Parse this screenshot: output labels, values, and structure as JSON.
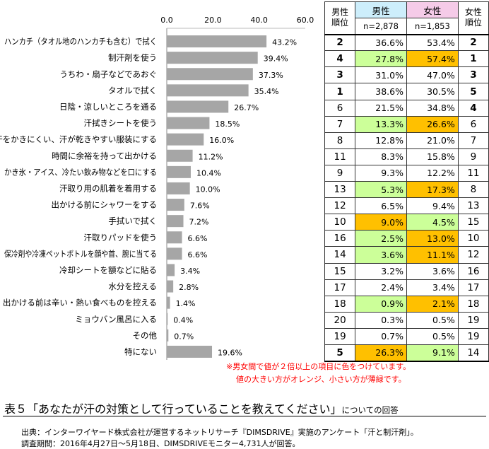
{
  "chart_data": {
    "type": "bar",
    "orientation": "horizontal",
    "categories": [
      "ハンカチ（タオル地のハンカチも含む）で拭く",
      "制汗剤を使う",
      "うちわ・扇子などであおぐ",
      "タオルで拭く",
      "日陰・涼しいところを通る",
      "汗拭きシートを使う",
      "汗をかきにくい、汗が乾きやすい服装にする",
      "時間に余裕を持って出かける",
      "かき氷・アイス、冷たい飲み物などを口にする",
      "汗取り用の肌着を着用する",
      "出かける前にシャワーをする",
      "手拭いで拭く",
      "汗取りパッドを使う",
      "保冷剤や冷凍ペットボトルを顔や首、腕に当てる",
      "冷却シートを額などに貼る",
      "水分を控える",
      "出かける前は辛い・熱い食べものを控える",
      "ミョウバン風呂に入る",
      "その他",
      "特にない"
    ],
    "values": [
      43.2,
      39.4,
      37.3,
      35.4,
      26.7,
      18.5,
      16.0,
      11.2,
      10.4,
      10.0,
      7.6,
      7.2,
      6.6,
      6.6,
      3.4,
      2.8,
      1.4,
      0.4,
      0.7,
      19.6
    ],
    "value_labels": [
      "43.2%",
      "39.4%",
      "37.3%",
      "35.4%",
      "26.7%",
      "18.5%",
      "16.0%",
      "11.2%",
      "10.4%",
      "10.0%",
      "7.6%",
      "7.2%",
      "6.6%",
      "6.6%",
      "3.4%",
      "2.8%",
      "1.4%",
      "0.4%",
      "0.7%",
      "19.6%"
    ],
    "xlim": [
      0,
      60
    ],
    "xticks": [
      "0.0",
      "20.0",
      "40.0",
      "60.0"
    ],
    "bar_color": "#a6a6a6"
  },
  "table": {
    "headers": {
      "male_rank": "男性\n順位",
      "male": "男性",
      "female": "女性",
      "female_rank": "女性\n順位",
      "male_n": "n=2,878",
      "female_n": "n=1,853"
    },
    "rows": [
      {
        "male_rank": "2",
        "male_rank_bold": true,
        "male": "36.6%",
        "female": "53.4%",
        "female_rank": "2",
        "female_rank_bold": true,
        "male_hl": "",
        "female_hl": ""
      },
      {
        "male_rank": "4",
        "male_rank_bold": true,
        "male": "27.8%",
        "female": "57.4%",
        "female_rank": "1",
        "female_rank_bold": true,
        "male_hl": "green",
        "female_hl": "orange"
      },
      {
        "male_rank": "3",
        "male_rank_bold": true,
        "male": "31.0%",
        "female": "47.0%",
        "female_rank": "3",
        "female_rank_bold": true,
        "male_hl": "",
        "female_hl": ""
      },
      {
        "male_rank": "1",
        "male_rank_bold": true,
        "male": "38.6%",
        "female": "30.5%",
        "female_rank": "5",
        "female_rank_bold": true,
        "male_hl": "",
        "female_hl": ""
      },
      {
        "male_rank": "6",
        "male_rank_bold": false,
        "male": "21.5%",
        "female": "34.8%",
        "female_rank": "4",
        "female_rank_bold": true,
        "male_hl": "",
        "female_hl": ""
      },
      {
        "male_rank": "7",
        "male_rank_bold": false,
        "male": "13.3%",
        "female": "26.6%",
        "female_rank": "6",
        "female_rank_bold": false,
        "male_hl": "green",
        "female_hl": "orange"
      },
      {
        "male_rank": "8",
        "male_rank_bold": false,
        "male": "12.8%",
        "female": "21.0%",
        "female_rank": "7",
        "female_rank_bold": false,
        "male_hl": "",
        "female_hl": ""
      },
      {
        "male_rank": "11",
        "male_rank_bold": false,
        "male": "8.3%",
        "female": "15.8%",
        "female_rank": "9",
        "female_rank_bold": false,
        "male_hl": "",
        "female_hl": ""
      },
      {
        "male_rank": "9",
        "male_rank_bold": false,
        "male": "9.3%",
        "female": "12.2%",
        "female_rank": "11",
        "female_rank_bold": false,
        "male_hl": "",
        "female_hl": ""
      },
      {
        "male_rank": "13",
        "male_rank_bold": false,
        "male": "5.3%",
        "female": "17.3%",
        "female_rank": "8",
        "female_rank_bold": false,
        "male_hl": "green",
        "female_hl": "orange"
      },
      {
        "male_rank": "12",
        "male_rank_bold": false,
        "male": "6.5%",
        "female": "9.4%",
        "female_rank": "13",
        "female_rank_bold": false,
        "male_hl": "",
        "female_hl": ""
      },
      {
        "male_rank": "10",
        "male_rank_bold": false,
        "male": "9.0%",
        "female": "4.5%",
        "female_rank": "15",
        "female_rank_bold": false,
        "male_hl": "orange",
        "female_hl": "green"
      },
      {
        "male_rank": "16",
        "male_rank_bold": false,
        "male": "2.5%",
        "female": "13.0%",
        "female_rank": "10",
        "female_rank_bold": false,
        "male_hl": "green",
        "female_hl": "orange"
      },
      {
        "male_rank": "14",
        "male_rank_bold": false,
        "male": "3.6%",
        "female": "11.1%",
        "female_rank": "12",
        "female_rank_bold": false,
        "male_hl": "green",
        "female_hl": "orange"
      },
      {
        "male_rank": "15",
        "male_rank_bold": false,
        "male": "3.2%",
        "female": "3.6%",
        "female_rank": "16",
        "female_rank_bold": false,
        "male_hl": "",
        "female_hl": ""
      },
      {
        "male_rank": "17",
        "male_rank_bold": false,
        "male": "2.4%",
        "female": "3.4%",
        "female_rank": "17",
        "female_rank_bold": false,
        "male_hl": "",
        "female_hl": ""
      },
      {
        "male_rank": "18",
        "male_rank_bold": false,
        "male": "0.9%",
        "female": "2.1%",
        "female_rank": "18",
        "female_rank_bold": false,
        "male_hl": "green",
        "female_hl": "orange"
      },
      {
        "male_rank": "20",
        "male_rank_bold": false,
        "male": "0.3%",
        "female": "0.5%",
        "female_rank": "19",
        "female_rank_bold": false,
        "male_hl": "",
        "female_hl": ""
      },
      {
        "male_rank": "19",
        "male_rank_bold": false,
        "male": "0.7%",
        "female": "0.5%",
        "female_rank": "19",
        "female_rank_bold": false,
        "male_hl": "",
        "female_hl": ""
      },
      {
        "male_rank": "5",
        "male_rank_bold": true,
        "male": "26.3%",
        "female": "9.1%",
        "female_rank": "14",
        "female_rank_bold": false,
        "male_hl": "orange",
        "female_hl": "green"
      }
    ]
  },
  "colors": {
    "orange": "#ffc000",
    "green": "#ccff99",
    "male_header": "#cdeefb",
    "female_header": "#f5cbe8",
    "note_red": "#ff0000"
  },
  "notes": {
    "line1": "※男女間で値が２倍以上の項目に色をつけています。",
    "line2": "値の大きい方がオレンジ、小さい方が薄緑です。"
  },
  "caption": {
    "main": "表５「あなたが汗の対策として行っていることを教えてください」",
    "sub": "についての回答"
  },
  "source": {
    "line1": "出典：インターワイヤード株式会社が運営するネットリサーチ『DIMSDRIVE』実施のアンケート「汗と制汗剤」。",
    "line2": "調査期間：2016年4月27日～5月18日、DIMSDRIVEモニター4,731人が回答。"
  }
}
